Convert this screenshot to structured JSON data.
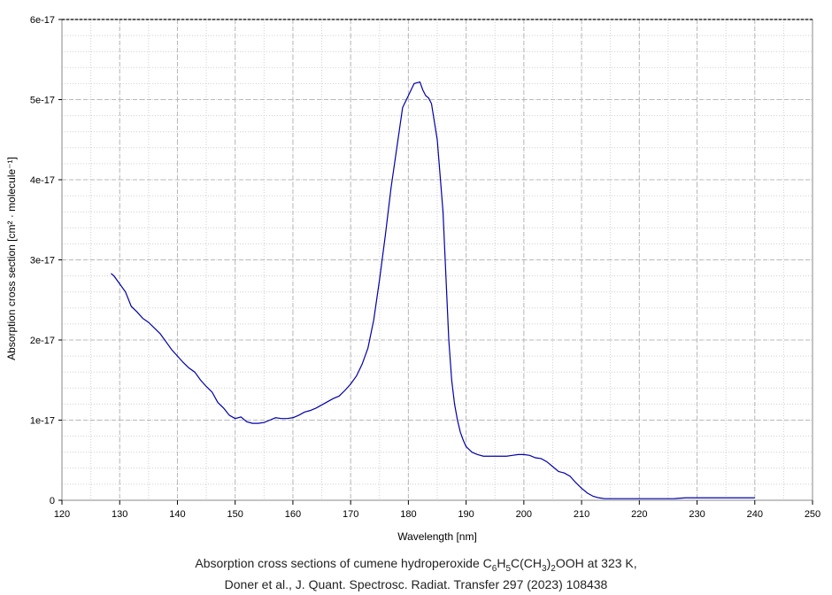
{
  "chart_data": {
    "type": "line",
    "xlabel": "Wavelength [nm]",
    "ylabel": "Absorption cross section [cm² · molecule⁻¹]",
    "xlim": [
      120,
      250
    ],
    "ylim": [
      0,
      6e-17
    ],
    "x_ticks": [
      120,
      130,
      140,
      150,
      160,
      170,
      180,
      190,
      200,
      210,
      220,
      230,
      240,
      250
    ],
    "x_tick_labels": [
      "120",
      "130",
      "140",
      "150",
      "160",
      "170",
      "180",
      "190",
      "200",
      "210",
      "220",
      "230",
      "240",
      "250"
    ],
    "y_ticks": [
      0,
      1e-17,
      2e-17,
      3e-17,
      4e-17,
      5e-17,
      6e-17
    ],
    "y_tick_labels": [
      "0",
      "1e-17",
      "2e-17",
      "3e-17",
      "4e-17",
      "5e-17",
      "6e-17"
    ],
    "grid": true,
    "line_color": "#0000aa",
    "series": [
      {
        "x": [
          128.5,
          129,
          130,
          131,
          132,
          133,
          134,
          135,
          136,
          137,
          138,
          139,
          140,
          141,
          142,
          143,
          144,
          145,
          146,
          147,
          148,
          149,
          150,
          151,
          152,
          153,
          154,
          155,
          156,
          157,
          158,
          159,
          160,
          161,
          162,
          163,
          164,
          165,
          166,
          167,
          168,
          169,
          170,
          171,
          172,
          173,
          174,
          175,
          176,
          177,
          178,
          179,
          180,
          181,
          182,
          182.5,
          183,
          183.5,
          184,
          185,
          186,
          186.5,
          187,
          187.5,
          188,
          188.5,
          189,
          189.5,
          190,
          191,
          192,
          193,
          194,
          195,
          196,
          197,
          198,
          199,
          200,
          201,
          202,
          203,
          204,
          205,
          206,
          207,
          208,
          209,
          210,
          211,
          212,
          213,
          214,
          215,
          216,
          217,
          218,
          219,
          220,
          222,
          224,
          226,
          228,
          230,
          232,
          234,
          236,
          238,
          240
        ],
        "y": [
          2.83e-17,
          2.8e-17,
          2.7e-17,
          2.6e-17,
          2.42e-17,
          2.35e-17,
          2.27e-17,
          2.22e-17,
          2.15e-17,
          2.08e-17,
          1.98e-17,
          1.88e-17,
          1.8e-17,
          1.72e-17,
          1.65e-17,
          1.6e-17,
          1.5e-17,
          1.42e-17,
          1.35e-17,
          1.22e-17,
          1.15e-17,
          1.06e-17,
          1.02e-17,
          1.04e-17,
          9.8e-18,
          9.6e-18,
          9.6e-18,
          9.7e-18,
          1e-17,
          1.03e-17,
          1.02e-17,
          1.02e-17,
          1.03e-17,
          1.06e-17,
          1.1e-17,
          1.12e-17,
          1.15e-17,
          1.19e-17,
          1.23e-17,
          1.27e-17,
          1.3e-17,
          1.37e-17,
          1.45e-17,
          1.55e-17,
          1.7e-17,
          1.9e-17,
          2.25e-17,
          2.75e-17,
          3.3e-17,
          3.9e-17,
          4.4e-17,
          4.9e-17,
          5.05e-17,
          5.2e-17,
          5.22e-17,
          5.12e-17,
          5.05e-17,
          5.02e-17,
          4.95e-17,
          4.5e-17,
          3.6e-17,
          2.8e-17,
          2e-17,
          1.5e-17,
          1.2e-17,
          1e-17,
          8.5e-18,
          7.5e-18,
          6.7e-18,
          6e-18,
          5.7e-18,
          5.5e-18,
          5.5e-18,
          5.5e-18,
          5.5e-18,
          5.5e-18,
          5.6e-18,
          5.7e-18,
          5.7e-18,
          5.6e-18,
          5.3e-18,
          5.2e-18,
          4.8e-18,
          4.2e-18,
          3.6e-18,
          3.4e-18,
          3e-18,
          2.2e-18,
          1.5e-18,
          9e-19,
          5e-19,
          3e-19,
          2e-19,
          2e-19,
          2e-19,
          2e-19,
          2e-19,
          2e-19,
          2e-19,
          2e-19,
          2e-19,
          2e-19,
          3e-19,
          3e-19,
          3e-19,
          3e-19,
          3e-19,
          3e-19,
          3e-19
        ]
      }
    ]
  },
  "caption": {
    "line1_pre": "Absorption cross sections of cumene hydroperoxide C",
    "line1_sub1": "6",
    "line1_mid1": "H",
    "line1_sub2": "5",
    "line1_mid2": "C(CH",
    "line1_sub3": "3",
    "line1_mid3": ")",
    "line1_sub4": "2",
    "line1_post": "OOH at 323 K,",
    "line2": "Doner et al., J. Quant. Spectrosc. Radiat. Transfer 297 (2023) 108438"
  }
}
